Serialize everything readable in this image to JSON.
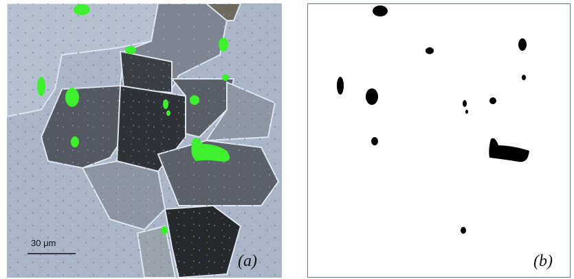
{
  "panels": [
    {
      "scale_bar": "30 μm",
      "label": "(a)"
    },
    {
      "label": "(b)"
    }
  ]
}
